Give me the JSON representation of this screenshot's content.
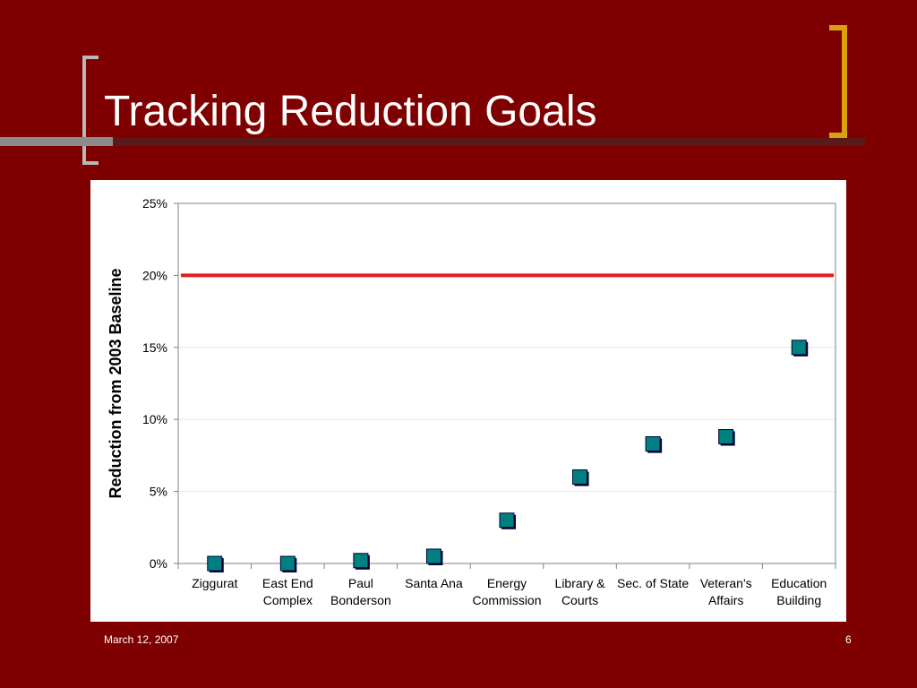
{
  "slide": {
    "title": "Tracking Reduction Goals",
    "date": "March 12, 2007",
    "page_number": "6"
  },
  "colors": {
    "background": "#7f0000",
    "marker_fill": "#008080",
    "marker_shadow": "#000033",
    "target_line": "#e61a1a",
    "accent_bracket": "#d9a10c"
  },
  "chart_data": {
    "type": "scatter",
    "ylabel": "Reduction from 2003 Baseline",
    "xlabel": "",
    "ylim": [
      0,
      25
    ],
    "yticks": [
      0,
      5,
      10,
      15,
      20,
      25
    ],
    "ytick_labels": [
      "0%",
      "5%",
      "10%",
      "15%",
      "20%",
      "25%"
    ],
    "categories": [
      [
        "Ziggurat"
      ],
      [
        "East End",
        "Complex"
      ],
      [
        "Paul",
        "Bonderson"
      ],
      [
        "Santa Ana"
      ],
      [
        "Energy",
        "Commission"
      ],
      [
        "Library &",
        "Courts"
      ],
      [
        "Sec. of State"
      ],
      [
        "Veteran's",
        "Affairs"
      ],
      [
        "Education",
        "Building"
      ]
    ],
    "values": [
      0,
      0,
      0.2,
      0.5,
      3,
      6,
      8.3,
      8.8,
      15
    ],
    "target_line": 20,
    "grid": true,
    "legend": "none"
  }
}
